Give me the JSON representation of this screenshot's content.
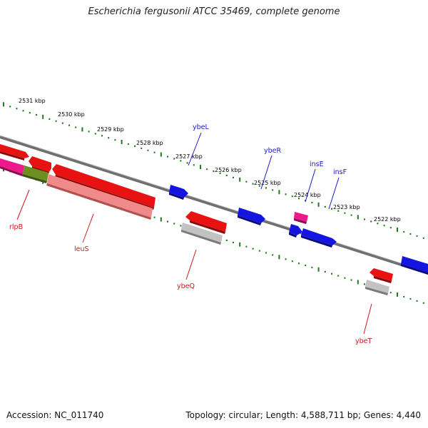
{
  "title": "Escherichia fergusonii ATCC 35469, complete genome",
  "footer": {
    "accession": "Accession: NC_011740",
    "topology": "Topology: circular; Length: 4,588,711 bp; Genes: 4,440"
  },
  "colors": {
    "backbone": "#777777",
    "tick": "#1f7a1f",
    "forward_gene": "#1515e0",
    "reverse_gene": "#e01010",
    "rna": "#e0147a",
    "pseudo": "#9a9a9a",
    "overlap": "#6d8f20",
    "forward_label": "#1a1ac8",
    "reverse_label": "#c81a1a"
  },
  "scale_labels": [
    "2531 kbp",
    "2530 kbp",
    "2529 kbp",
    "2528 kbp",
    "2527 kbp",
    "2526 kbp",
    "2525 kbp",
    "2524 kbp",
    "2523 kbp",
    "2522 kbp"
  ],
  "forward_labels": [
    "ybeL",
    "ybeR",
    "insE",
    "insF"
  ],
  "reverse_labels": [
    "rlpB",
    "leuS",
    "ybeQ",
    "ybeT"
  ]
}
